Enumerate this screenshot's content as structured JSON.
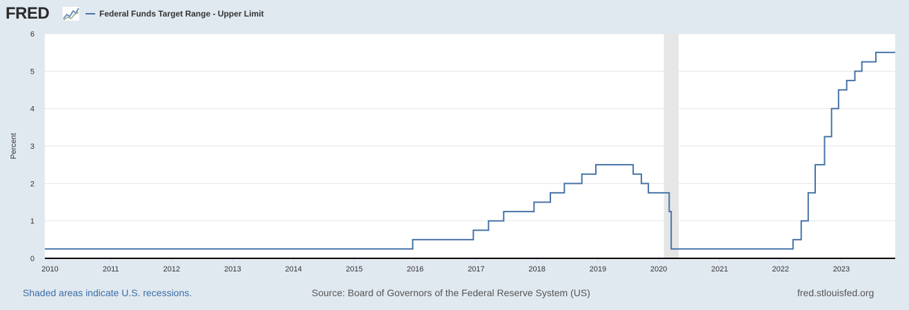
{
  "header": {
    "logo_text": "FRED",
    "logo_icon": "fred-chart-icon",
    "legend_label": "Federal Funds Target Range - Upper Limit"
  },
  "footer": {
    "recession_note": "Shaded areas indicate U.S. recessions.",
    "source": "Source: Board of Governors of the Federal Reserve System (US)",
    "site": "fred.stlouisfed.org"
  },
  "colors": {
    "page_background": "#e1e9f0",
    "plot_background": "#ffffff",
    "series_line": "#4572a7",
    "recession_shade": "#e6e6e6",
    "grid_line": "#e6e6e6"
  },
  "chart_data": {
    "type": "line",
    "step": true,
    "title": "",
    "xlabel": "",
    "ylabel": "Percent",
    "ylim": [
      0,
      6
    ],
    "yticks": [
      "0",
      "1",
      "2",
      "3",
      "4",
      "5",
      "6"
    ],
    "xlim": [
      "2009-12-01",
      "2023-11-20"
    ],
    "xticks": [
      "2010",
      "2011",
      "2012",
      "2013",
      "2014",
      "2015",
      "2016",
      "2017",
      "2018",
      "2019",
      "2020",
      "2021",
      "2022",
      "2023"
    ],
    "grid": true,
    "legend_position": "top-left",
    "recessions": [
      {
        "start": "2020-02-01",
        "end": "2020-04-30"
      }
    ],
    "series": [
      {
        "name": "Federal Funds Target Range - Upper Limit",
        "points": [
          [
            "2009-12-01",
            0.25
          ],
          [
            "2015-12-17",
            0.5
          ],
          [
            "2016-12-15",
            0.75
          ],
          [
            "2017-03-16",
            1.0
          ],
          [
            "2017-06-15",
            1.25
          ],
          [
            "2017-12-14",
            1.5
          ],
          [
            "2018-03-22",
            1.75
          ],
          [
            "2018-06-14",
            2.0
          ],
          [
            "2018-09-27",
            2.25
          ],
          [
            "2018-12-20",
            2.5
          ],
          [
            "2019-08-01",
            2.25
          ],
          [
            "2019-09-19",
            2.0
          ],
          [
            "2019-10-31",
            1.75
          ],
          [
            "2020-03-04",
            1.25
          ],
          [
            "2020-03-16",
            0.25
          ],
          [
            "2022-03-17",
            0.5
          ],
          [
            "2022-05-05",
            1.0
          ],
          [
            "2022-06-16",
            1.75
          ],
          [
            "2022-07-28",
            2.5
          ],
          [
            "2022-09-22",
            3.25
          ],
          [
            "2022-11-03",
            4.0
          ],
          [
            "2022-12-15",
            4.5
          ],
          [
            "2023-02-02",
            4.75
          ],
          [
            "2023-03-23",
            5.0
          ],
          [
            "2023-05-04",
            5.25
          ],
          [
            "2023-07-27",
            5.5
          ],
          [
            "2023-11-20",
            5.5
          ]
        ]
      }
    ]
  }
}
